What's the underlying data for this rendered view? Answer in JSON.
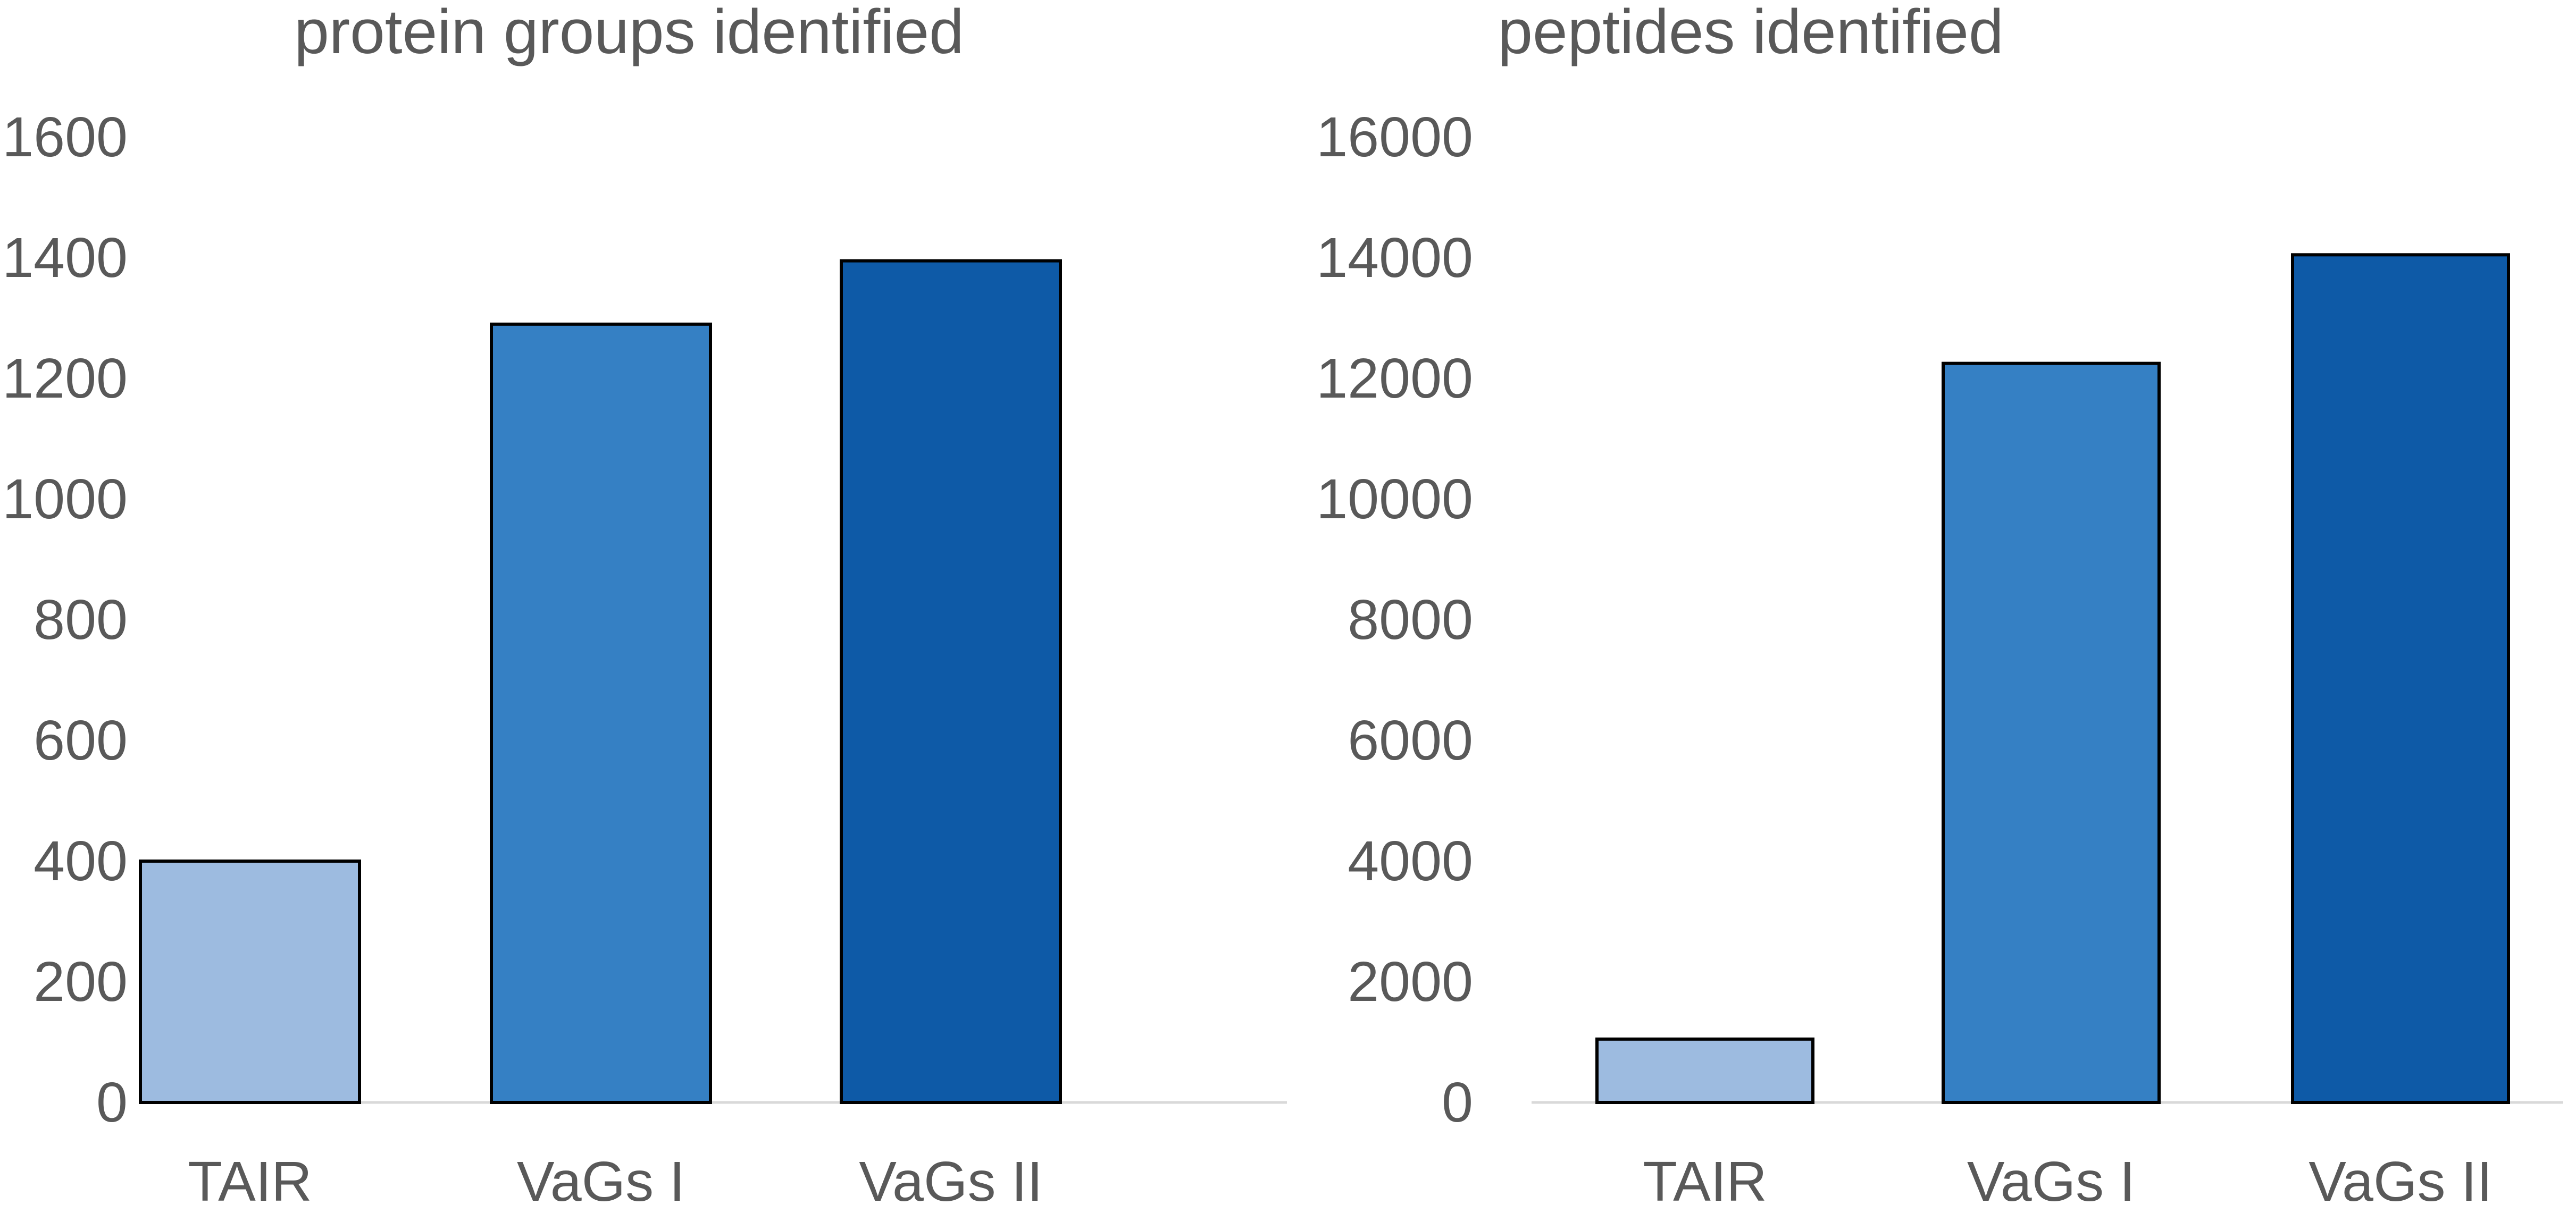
{
  "chart_data": [
    {
      "type": "bar",
      "title": "protein groups identified",
      "categories": [
        "TAIR",
        "VaGs I",
        "VaGs II"
      ],
      "values": [
        400,
        1290,
        1395
      ],
      "ylim": [
        0,
        1600
      ],
      "yticks": [
        "0",
        "200",
        "400",
        "600",
        "800",
        "1000",
        "1200",
        "1400",
        "1600"
      ],
      "colors": [
        "#9DBBE0",
        "#3580C4",
        "#0E5AA7"
      ],
      "grid": false,
      "legend": "none"
    },
    {
      "type": "bar",
      "title": "peptides identified",
      "categories": [
        "TAIR",
        "VaGs I",
        "VaGs II"
      ],
      "values": [
        1050,
        12250,
        14050
      ],
      "ylim": [
        0,
        16000
      ],
      "yticks": [
        "0",
        "2000",
        "4000",
        "6000",
        "8000",
        "10000",
        "12000",
        "14000",
        "16000"
      ],
      "colors": [
        "#9DBBE0",
        "#3580C4",
        "#0E5AA7"
      ],
      "grid": false,
      "legend": "none"
    }
  ]
}
